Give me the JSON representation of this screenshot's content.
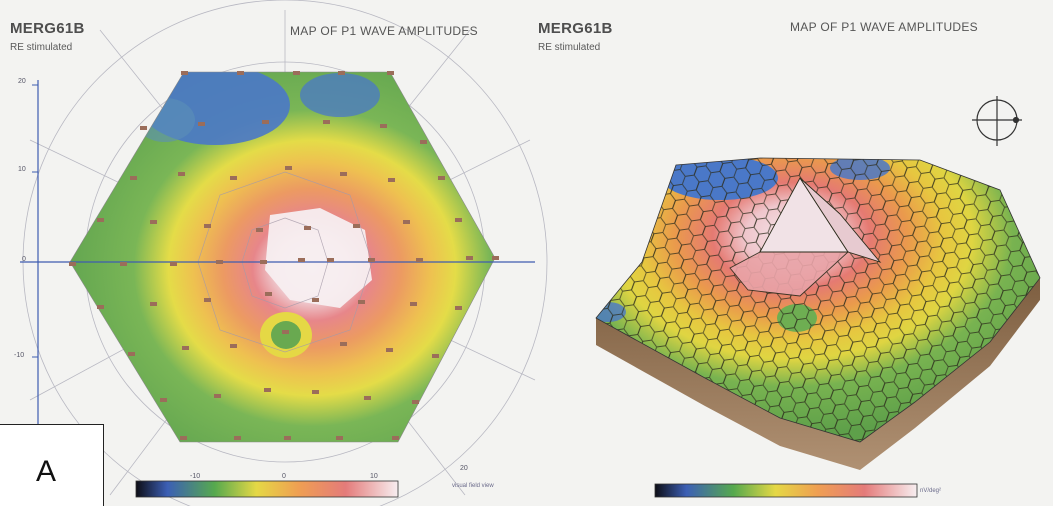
{
  "left_panel": {
    "subject_id": "MERG61B",
    "stim_note": "RE stimulated",
    "title": "MAP OF P1 WAVE AMPLITUDES",
    "y_ticks": [
      "20",
      "10",
      "0",
      "-10"
    ],
    "x_ticks": [
      "-10",
      "0",
      "10",
      "20"
    ],
    "axis_caption": "visual field view"
  },
  "right_panel": {
    "subject_id": "MERG61B",
    "stim_note": "RE stimulated",
    "title": "MAP OF P1 WAVE AMPLITUDES",
    "scale_unit": "nV/deg²"
  },
  "panel_label": "A",
  "colors": {
    "blue": "#4a78c8",
    "green": "#66a852",
    "yellow": "#e7d83f",
    "orange": "#eea352",
    "red": "#e47c78",
    "peak": "#f6e6ea",
    "base": "#8c6a4a"
  }
}
